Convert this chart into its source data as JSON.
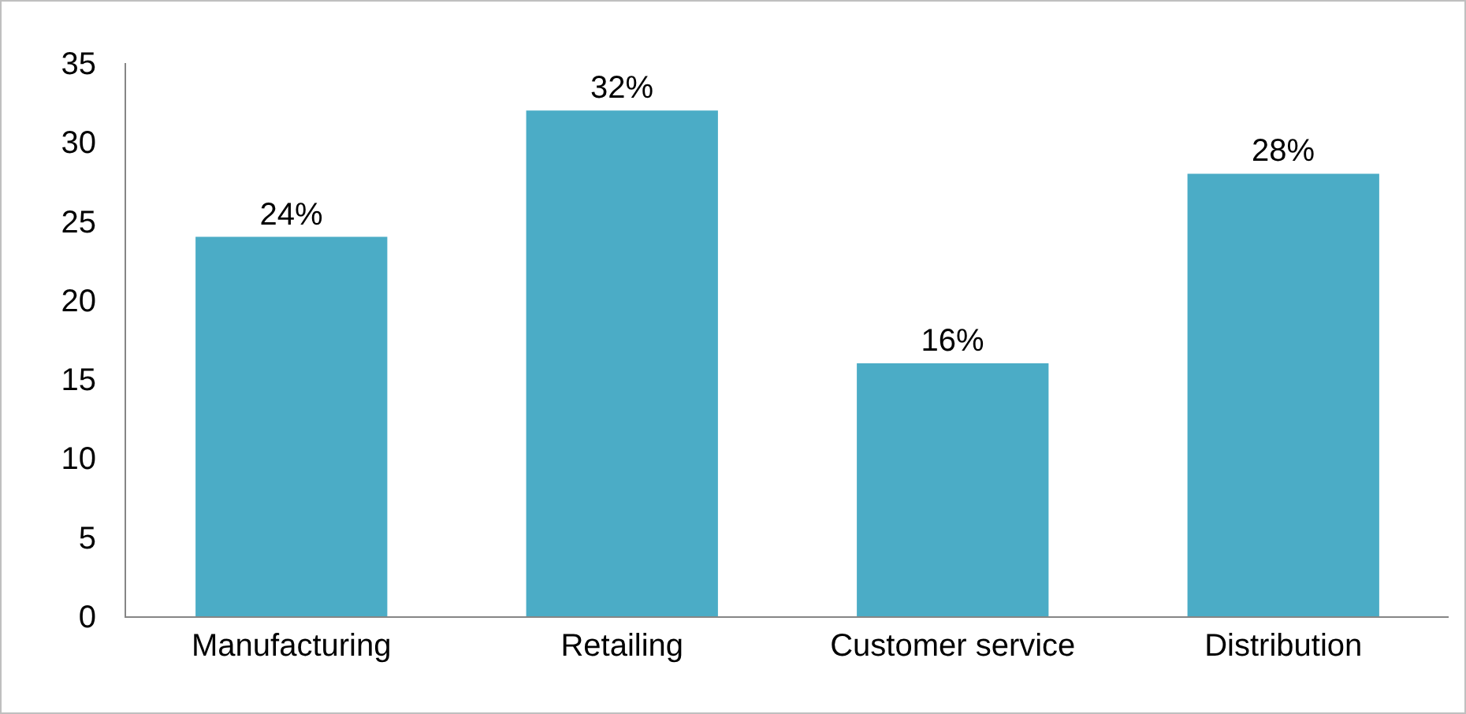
{
  "chart_data": {
    "type": "bar",
    "categories": [
      "Manufacturing",
      "Retailing",
      "Customer service",
      "Distribution"
    ],
    "values": [
      24,
      32,
      16,
      28
    ],
    "value_labels": [
      "24%",
      "32%",
      "16%",
      "28%"
    ],
    "color": "#4bacc6",
    "ylim": [
      0,
      35
    ],
    "yticks": [
      0,
      5,
      10,
      15,
      20,
      25,
      30,
      35
    ],
    "grid": false
  }
}
